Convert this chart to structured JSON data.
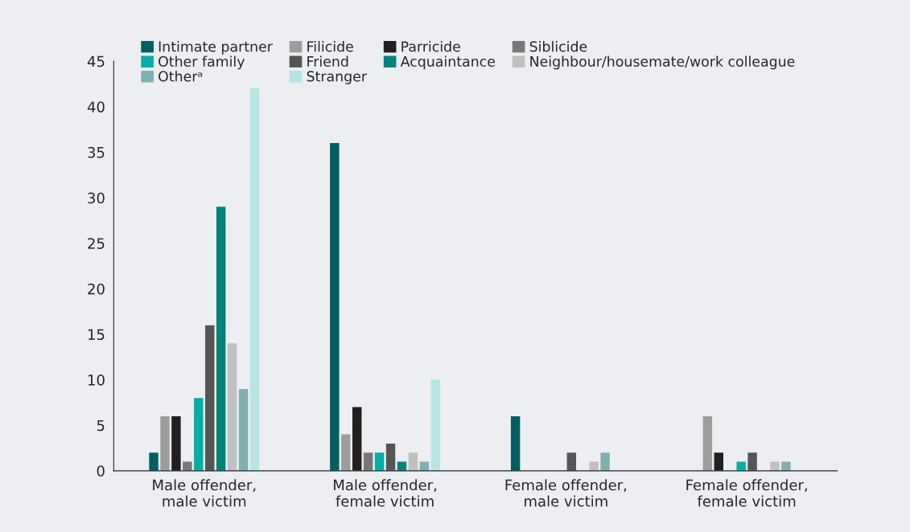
{
  "chart_data": {
    "type": "bar",
    "categories": [
      "Male offender,\nmale victim",
      "Male offender,\nfemale victim",
      "Female offender,\nmale victim",
      "Female offender,\nfemale victim"
    ],
    "series": [
      {
        "name": "Intimate partner",
        "color": "#005f61",
        "values": [
          2,
          36,
          6,
          0
        ]
      },
      {
        "name": "Filicide",
        "color": "#9d9d9d",
        "values": [
          6,
          4,
          0,
          6
        ]
      },
      {
        "name": "Parricide",
        "color": "#231f20",
        "values": [
          6,
          7,
          0,
          2
        ]
      },
      {
        "name": "Siblicide",
        "color": "#777777",
        "values": [
          1,
          2,
          0,
          0
        ]
      },
      {
        "name": "Other family",
        "color": "#00afa6",
        "values": [
          8,
          2,
          0,
          1
        ]
      },
      {
        "name": "Friend",
        "color": "#555555",
        "values": [
          16,
          3,
          2,
          2
        ]
      },
      {
        "name": "Acquaintance",
        "color": "#00857c",
        "values": [
          29,
          1,
          0,
          0
        ]
      },
      {
        "name": "Neighbour/housemate/work colleague",
        "color": "#c0c0c0",
        "values": [
          14,
          2,
          1,
          1
        ]
      },
      {
        "name": "Otherᵃ",
        "color": "#7fb0b0",
        "values": [
          9,
          1,
          2,
          1
        ]
      },
      {
        "name": "Stranger",
        "color": "#b6e6e3",
        "values": [
          42,
          10,
          0,
          0
        ]
      }
    ],
    "ylim": [
      0,
      45
    ],
    "yticks": [
      0,
      5,
      10,
      15,
      20,
      25,
      30,
      35,
      40,
      45
    ],
    "grid": false,
    "legend": "top"
  }
}
